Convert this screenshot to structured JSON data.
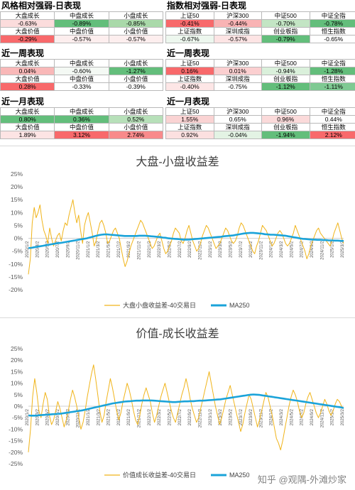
{
  "panels": [
    {
      "title": "风格相对强弱-日表现",
      "rows": [
        {
          "labels": [
            "大盘成长",
            "中盘成长",
            "小盘成长"
          ],
          "values": [
            "-0.63%",
            "-0.89%",
            "-0.85%"
          ],
          "colors": [
            "#fbdcdc",
            "#63be7b",
            "#a9d9a9"
          ]
        },
        {
          "labels": [
            "大盘价值",
            "中盘价值",
            "小盘价值"
          ],
          "values": [
            "-0.29%",
            "-0.57%",
            "-0.57%"
          ],
          "colors": [
            "#f8696b",
            "#fdeeee",
            "#fdeeee"
          ]
        }
      ]
    },
    {
      "title": "近一周表现",
      "rows": [
        {
          "labels": [
            "大盘成长",
            "中盘成长",
            "小盘成长"
          ],
          "values": [
            "0.04%",
            "-0.60%",
            "-1.27%"
          ],
          "colors": [
            "#f9b8b8",
            "#f4f9f4",
            "#63be7b"
          ]
        },
        {
          "labels": [
            "大盘价值",
            "中盘价值",
            "小盘价值"
          ],
          "values": [
            "0.28%",
            "-0.33%",
            "-0.39%"
          ],
          "colors": [
            "#f8696b",
            "#ffffff",
            "#ffffff"
          ]
        }
      ]
    },
    {
      "title": "近一月表现",
      "rows": [
        {
          "labels": [
            "大盘成长",
            "中盘成长",
            "小盘成长"
          ],
          "values": [
            "0.80%",
            "0.36%",
            "0.52%"
          ],
          "colors": [
            "#63be7b",
            "#63be7b",
            "#b7e0b9"
          ]
        },
        {
          "labels": [
            "大盘价值",
            "中盘价值",
            "小盘价值"
          ],
          "values": [
            "1.89%",
            "3.12%",
            "2.74%"
          ],
          "colors": [
            "#fde4e4",
            "#f8696b",
            "#f88a8b"
          ]
        }
      ]
    },
    {
      "title": "指数相对强弱-日表现",
      "rows": [
        {
          "labels": [
            "上证50",
            "沪深300",
            "中证500",
            "中证全指"
          ],
          "values": [
            "-0.41%",
            "-0.44%",
            "-0.70%",
            "-0.78%"
          ],
          "colors": [
            "#f8696b",
            "#f9b3b4",
            "#c3e5c4",
            "#63be7b"
          ]
        },
        {
          "labels": [
            "上证指数",
            "深圳成指",
            "创业板指",
            "恒生指数"
          ],
          "values": [
            "-0.67%",
            "-0.57%",
            "-0.79%",
            "-0.65%"
          ],
          "colors": [
            "#edf7ee",
            "#fde4e4",
            "#63be7b",
            "#ffffff"
          ]
        }
      ]
    },
    {
      "title": "近一周表现",
      "rows": [
        {
          "labels": [
            "上证50",
            "沪深300",
            "中证500",
            "中证全指"
          ],
          "values": [
            "0.16%",
            "0.01%",
            "-0.94%",
            "-1.28%"
          ],
          "colors": [
            "#f8696b",
            "#fbcfd0",
            "#daf0db",
            "#63be7b"
          ]
        },
        {
          "labels": [
            "上证指数",
            "深圳成指",
            "创业板指",
            "恒生指数"
          ],
          "values": [
            "-0.40%",
            "-0.75%",
            "-1.12%",
            "-1.11%"
          ],
          "colors": [
            "#fde6e6",
            "#ffffff",
            "#63be7b",
            "#7fca93"
          ]
        }
      ]
    },
    {
      "title": "近一月表现",
      "rows": [
        {
          "labels": [
            "上证50",
            "沪深300",
            "中证500",
            "中证全指"
          ],
          "values": [
            "1.55%",
            "0.65%",
            "0.96%",
            "0.44%"
          ],
          "colors": [
            "#fad3d3",
            "#ffffff",
            "#fbdada",
            "#ffffff"
          ]
        },
        {
          "labels": [
            "上证指数",
            "深圳成指",
            "创业板指",
            "恒生指数"
          ],
          "values": [
            "0.92%",
            "-0.04%",
            "-1.94%",
            "2.12%"
          ],
          "colors": [
            "#fce0e0",
            "#e3f3e4",
            "#63be7b",
            "#f8696b"
          ]
        }
      ]
    }
  ],
  "chart_data": [
    {
      "type": "line",
      "title": "大盘-小盘收益差",
      "ylim": [
        -20,
        25
      ],
      "yticks": [
        "25%",
        "20%",
        "15%",
        "10%",
        "5%",
        "0%",
        "-5%",
        "-10%",
        "-15%",
        "-20%"
      ],
      "xticks": [
        "2020/1/2",
        "2020/3/2",
        "2020/5/2",
        "2020/7/2",
        "2020/9/2",
        "2020/11/2",
        "2021/1/2",
        "2021/3/2",
        "2021/5/2",
        "2021/7/2",
        "2021/9/2",
        "2021/11/2",
        "2022/1/2",
        "2022/3/2",
        "2022/5/2",
        "2022/7/2",
        "2022/9/2",
        "2022/11/2",
        "2023/1/2",
        "2023/3/2",
        "2023/5/2",
        "2023/7/2",
        "2023/9/2",
        "2023/11/2",
        "2024/1/2",
        "2024/3/2",
        "2024/5/2",
        "2024/7/2",
        "2024/9/2",
        "2024/11/2",
        "2025/1/2",
        "2025/3/2"
      ],
      "grid": false,
      "legend_position": "bottom",
      "series": [
        {
          "name": "大盘小盘收益差-40交易日",
          "color": "#f0b41a",
          "values": [
            -14,
            -8,
            6,
            12,
            8,
            10,
            13,
            7,
            3,
            1,
            -2,
            4,
            0,
            -3,
            -1,
            1,
            2,
            -1,
            3,
            6,
            5,
            9,
            12,
            15,
            10,
            6,
            9,
            3,
            -2,
            5,
            8,
            10,
            6,
            2,
            -3,
            -1,
            3,
            6,
            7,
            5,
            2,
            -2,
            -1,
            1,
            3,
            4,
            2,
            0,
            -4,
            -8,
            -11,
            -9,
            -6,
            -3,
            -1,
            1,
            3,
            5,
            7,
            6,
            4,
            2,
            0,
            -2,
            -4,
            -3,
            -1,
            1,
            2,
            -1,
            -4,
            -6,
            -5,
            -3,
            -1,
            2,
            4,
            3,
            2,
            -1,
            -2,
            0,
            3,
            5,
            2,
            -1,
            -3,
            -5,
            -4,
            -2,
            1,
            3,
            5,
            4,
            2,
            0,
            -2,
            -4,
            -3,
            -2,
            0,
            2,
            4,
            3,
            1,
            -1,
            -2,
            -1,
            1,
            4,
            6,
            5,
            3,
            1,
            -1,
            -3,
            -5,
            -6,
            -3,
            -1,
            2,
            5,
            4,
            3,
            1,
            -1,
            -3,
            -2,
            0,
            2,
            3,
            2,
            0,
            -2,
            -3,
            -2,
            0,
            2,
            5,
            3,
            1,
            -1,
            -3,
            -5,
            -8,
            -6,
            -3,
            -1,
            1,
            3,
            4,
            2,
            1,
            0,
            -1,
            -2,
            -3,
            -1,
            2,
            4,
            6,
            3,
            0,
            -2
          ]
        },
        {
          "name": "MA250",
          "color": "#1aa3d9",
          "values": [
            -3.8,
            -3.7,
            -3.5,
            -3.3,
            -3.1,
            -2.9,
            -2.7,
            -2.5,
            -2.3,
            -2.1,
            -1.9,
            -1.8,
            -1.6,
            -1.4,
            -1.2,
            -1.0,
            -0.8,
            -0.6,
            -0.4,
            -0.2,
            0.0,
            0.3,
            0.6,
            0.9,
            1.2,
            1.4,
            1.5,
            1.5,
            1.4,
            1.3,
            1.2,
            1.1,
            1.0,
            0.9,
            0.9,
            0.9,
            0.9,
            0.9,
            1.0,
            1.0,
            1.0,
            0.9,
            0.8,
            0.7,
            0.6,
            0.5,
            0.3,
            0.2,
            0.0,
            -0.1,
            -0.2,
            -0.3,
            -0.4,
            -0.5,
            -0.5,
            -0.5,
            -0.4,
            -0.3,
            -0.2,
            -0.1,
            0.0,
            0.1,
            0.2,
            0.3,
            0.4,
            0.5,
            0.6,
            0.8,
            0.9,
            1.0,
            1.1,
            1.3,
            1.5,
            1.7,
            1.9,
            2.0,
            2.1,
            2.1,
            2.0,
            1.9,
            1.8,
            1.6,
            1.5,
            1.4,
            1.4,
            1.3,
            1.2,
            1.1,
            1.0,
            0.8,
            0.6,
            0.4,
            0.2,
            0.0,
            -0.2,
            -0.3,
            -0.4,
            -0.5,
            -0.5,
            -0.6,
            -0.6,
            -0.7,
            -0.7,
            -0.8,
            -0.8,
            -0.9,
            -0.9,
            -1.0,
            -1.0
          ]
        }
      ]
    },
    {
      "type": "line",
      "title": "价值-成长收益差",
      "ylim": [
        -25,
        25
      ],
      "yticks": [
        "25%",
        "20%",
        "15%",
        "10%",
        "5%",
        "0%",
        "-5%",
        "-10%",
        "-15%",
        "-20%",
        "-25%"
      ],
      "xticks": [
        "2020/1/2",
        "2020/3/2",
        "2020/5/2",
        "2020/7/2",
        "2020/9/2",
        "2020/11/2",
        "2021/1/2",
        "2021/3/2",
        "2021/5/2",
        "2021/7/2",
        "2021/9/2",
        "2021/11/2",
        "2022/1/2",
        "2022/3/2",
        "2022/5/2",
        "2022/7/2",
        "2022/9/2",
        "2022/11/2",
        "2023/1/2",
        "2023/3/2",
        "2023/5/2",
        "2023/7/2",
        "2023/9/2",
        "2023/11/2",
        "2024/1/2",
        "2024/3/2",
        "2024/5/2",
        "2024/7/2",
        "2024/9/2",
        "2024/11/2",
        "2025/1/2",
        "2025/3/2"
      ],
      "grid": false,
      "legend_position": "bottom",
      "series": [
        {
          "name": "价值成长收益差-40交易日",
          "color": "#f0b41a",
          "values": [
            -20,
            -10,
            4,
            12,
            6,
            -2,
            -5,
            1,
            6,
            3,
            -4,
            -8,
            -6,
            -2,
            2,
            -1,
            -5,
            -9,
            -6,
            -2,
            3,
            7,
            4,
            0,
            -5,
            -10,
            -7,
            -2,
            4,
            9,
            14,
            18,
            12,
            5,
            -2,
            -7,
            -4,
            2,
            7,
            12,
            8,
            3,
            -2,
            -6,
            -3,
            2,
            6,
            10,
            7,
            3,
            -2,
            -6,
            -8,
            -4,
            1,
            5,
            8,
            5,
            2,
            -3,
            -7,
            -4,
            0,
            4,
            7,
            10,
            6,
            2,
            -2,
            -5,
            -7,
            -3,
            1,
            5,
            8,
            12,
            8,
            3,
            -1,
            -4,
            -7,
            -5,
            -1,
            3,
            7,
            11,
            15,
            10,
            5,
            0,
            -4,
            -8,
            -5,
            -1,
            3,
            6,
            9,
            5,
            1,
            -3,
            -7,
            -11,
            -8,
            -3,
            1,
            5,
            3,
            -1,
            -5,
            -9,
            -6,
            -2,
            2,
            6,
            4,
            0,
            -4,
            -9,
            -14,
            -16,
            -19,
            -15,
            -10,
            -5,
            0,
            4,
            7,
            5,
            2,
            -2,
            -5,
            -3,
            1,
            4,
            6,
            3,
            0,
            -3,
            -5,
            -3,
            0,
            3,
            1,
            -2,
            -4,
            -2,
            1,
            3,
            2,
            0,
            -1
          ]
        },
        {
          "name": "MA250",
          "color": "#1aa3d9",
          "values": [
            -4.0,
            -4.1,
            -4.1,
            -4.0,
            -3.9,
            -3.8,
            -3.7,
            -3.6,
            -3.5,
            -3.4,
            -3.3,
            -3.2,
            -3.0,
            -2.8,
            -2.6,
            -2.4,
            -2.2,
            -2.0,
            -1.8,
            -1.5,
            -1.2,
            -0.9,
            -0.6,
            -0.3,
            0.0,
            0.3,
            0.6,
            0.9,
            1.2,
            1.4,
            1.6,
            1.8,
            2.0,
            2.1,
            2.2,
            2.3,
            2.4,
            2.4,
            2.5,
            2.5,
            2.5,
            2.5,
            2.4,
            2.3,
            2.2,
            2.1,
            2.0,
            1.9,
            1.8,
            1.8,
            1.9,
            2.0,
            2.1,
            2.1,
            2.2,
            2.2,
            2.3,
            2.4,
            2.4,
            2.5,
            2.6,
            2.7,
            2.8,
            2.9,
            3.0,
            3.2,
            3.4,
            3.6,
            3.8,
            4.0,
            4.2,
            4.4,
            4.6,
            4.8,
            5.0,
            5.1,
            5.0,
            4.9,
            4.7,
            4.5,
            4.3,
            4.1,
            3.9,
            3.7,
            3.5,
            3.3,
            3.1,
            2.9,
            2.7,
            2.5,
            2.3,
            2.1,
            1.9,
            1.7,
            1.5,
            1.3,
            1.1,
            0.9,
            0.7,
            0.5,
            0.3,
            0.1,
            -0.1,
            -0.3,
            -0.5,
            -0.8
          ]
        }
      ]
    }
  ],
  "watermark": "知乎 @观隅-外滩炒家"
}
